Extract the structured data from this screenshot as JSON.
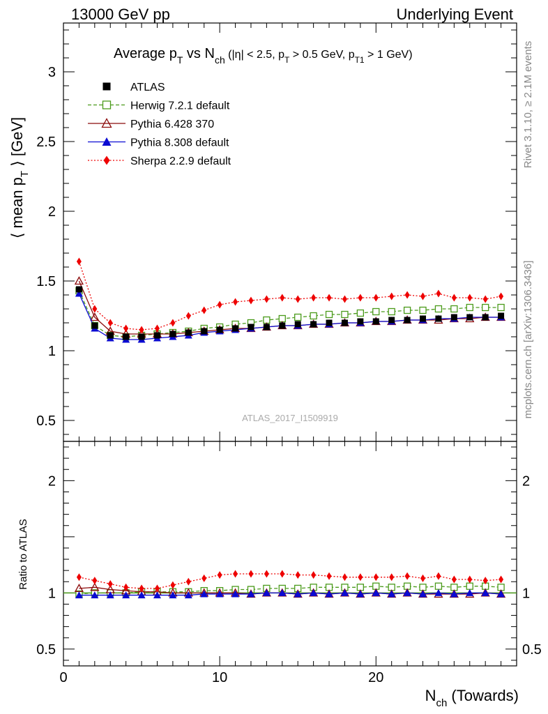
{
  "header": {
    "left": "13000 GeV pp",
    "right": "Underlying Event"
  },
  "side": {
    "rivet": "Rivet 3.1.10, ≥ 2.1M events",
    "mcplots": "mcplots.cern.ch [arXiv:1306.3436]"
  },
  "chart_data": {
    "type": "line",
    "title": {
      "main": "Average p",
      "main_sub": "T",
      "mid": " vs N",
      "mid_sub": "ch",
      "cut1": " (|η| < 2.5, p",
      "cut1_sub": "T",
      "cut2": " > 0.5 GeV, p",
      "cut2_sub": "T1",
      "cut3": " > 1 GeV)"
    },
    "ylabel": {
      "pre": "⟨ mean p",
      "sub": "T",
      "post": " ⟩ [GeV]"
    },
    "xlabel": {
      "pre": "N",
      "sub": "ch",
      "post": " (Towards)"
    },
    "ratio_ylabel": "Ratio to ATLAS",
    "watermark": "ATLAS_2017_I1509919",
    "xlim": [
      0,
      29
    ],
    "ylim": [
      0.35,
      3.35
    ],
    "ratio_ylim": [
      0.35,
      2.35
    ],
    "x_ticks": [
      0,
      10,
      20
    ],
    "y_ticks": [
      0.5,
      1,
      1.5,
      2,
      2.5,
      3
    ],
    "y_tick_labels": [
      "0.5",
      "1",
      "1.5",
      "2",
      "2.5",
      "3"
    ],
    "ratio_ticks": [
      0.5,
      1,
      2
    ],
    "ratio_tick_labels": [
      "0.5",
      "1",
      "2"
    ],
    "x": [
      1,
      2,
      3,
      4,
      5,
      6,
      7,
      8,
      9,
      10,
      11,
      12,
      13,
      14,
      15,
      16,
      17,
      18,
      19,
      20,
      21,
      22,
      23,
      24,
      25,
      26,
      27,
      28
    ],
    "series": [
      {
        "name": "ATLAS",
        "color": "#000000",
        "marker": "square-filled",
        "line": "none",
        "values": [
          1.44,
          1.18,
          1.11,
          1.1,
          1.1,
          1.11,
          1.12,
          1.13,
          1.14,
          1.15,
          1.16,
          1.17,
          1.17,
          1.18,
          1.19,
          1.19,
          1.2,
          1.2,
          1.21,
          1.21,
          1.22,
          1.22,
          1.23,
          1.23,
          1.24,
          1.24,
          1.24,
          1.25
        ],
        "ratio": [
          1,
          1,
          1,
          1,
          1,
          1,
          1,
          1,
          1,
          1,
          1,
          1,
          1,
          1,
          1,
          1,
          1,
          1,
          1,
          1,
          1,
          1,
          1,
          1,
          1,
          1,
          1,
          1
        ]
      },
      {
        "name": "Herwig 7.2.1 default",
        "color": "#4a9a1a",
        "marker": "square-open",
        "line": "dashed",
        "values": [
          1.43,
          1.18,
          1.11,
          1.1,
          1.11,
          1.12,
          1.13,
          1.14,
          1.16,
          1.17,
          1.19,
          1.2,
          1.22,
          1.23,
          1.24,
          1.25,
          1.26,
          1.26,
          1.27,
          1.28,
          1.28,
          1.29,
          1.29,
          1.3,
          1.3,
          1.31,
          1.31,
          1.31
        ],
        "ratio": [
          0.99,
          1.0,
          1.0,
          1.0,
          1.01,
          1.01,
          1.01,
          1.01,
          1.02,
          1.02,
          1.03,
          1.03,
          1.04,
          1.04,
          1.04,
          1.05,
          1.05,
          1.05,
          1.05,
          1.06,
          1.05,
          1.06,
          1.05,
          1.06,
          1.05,
          1.06,
          1.06,
          1.05
        ]
      },
      {
        "name": "Pythia 6.428 370",
        "color": "#8b0a0a",
        "marker": "triangle-open",
        "line": "solid",
        "values": [
          1.5,
          1.24,
          1.14,
          1.12,
          1.12,
          1.12,
          1.12,
          1.13,
          1.14,
          1.15,
          1.16,
          1.16,
          1.17,
          1.18,
          1.18,
          1.19,
          1.19,
          1.2,
          1.2,
          1.21,
          1.21,
          1.22,
          1.22,
          1.22,
          1.23,
          1.23,
          1.24,
          1.24
        ],
        "ratio": [
          1.04,
          1.05,
          1.03,
          1.02,
          1.01,
          1.01,
          1.0,
          1.0,
          1.0,
          1.0,
          1.0,
          0.99,
          1.0,
          1.0,
          0.99,
          1.0,
          0.99,
          1.0,
          0.99,
          1.0,
          0.99,
          1.0,
          0.99,
          0.99,
          0.99,
          0.99,
          1.0,
          0.99
        ]
      },
      {
        "name": "Pythia 8.308 default",
        "color": "#0a0ad2",
        "marker": "triangle-filled",
        "line": "solid",
        "values": [
          1.41,
          1.16,
          1.09,
          1.08,
          1.08,
          1.09,
          1.1,
          1.11,
          1.13,
          1.14,
          1.15,
          1.16,
          1.17,
          1.18,
          1.18,
          1.19,
          1.19,
          1.2,
          1.2,
          1.21,
          1.21,
          1.22,
          1.22,
          1.23,
          1.23,
          1.24,
          1.24,
          1.24
        ],
        "ratio": [
          0.98,
          0.98,
          0.98,
          0.98,
          0.98,
          0.98,
          0.98,
          0.98,
          0.99,
          0.99,
          0.99,
          0.99,
          1.0,
          1.0,
          0.99,
          1.0,
          0.99,
          1.0,
          0.99,
          1.0,
          0.99,
          1.0,
          0.99,
          1.0,
          0.99,
          1.0,
          1.0,
          0.99
        ]
      },
      {
        "name": "Sherpa 2.2.9 default",
        "color": "#ee0000",
        "marker": "diamond-filled",
        "line": "dotted",
        "values": [
          1.64,
          1.3,
          1.2,
          1.16,
          1.15,
          1.16,
          1.2,
          1.25,
          1.29,
          1.33,
          1.35,
          1.36,
          1.37,
          1.38,
          1.37,
          1.38,
          1.38,
          1.37,
          1.38,
          1.38,
          1.39,
          1.4,
          1.39,
          1.41,
          1.38,
          1.38,
          1.37,
          1.39
        ],
        "ratio": [
          1.14,
          1.11,
          1.08,
          1.05,
          1.04,
          1.04,
          1.07,
          1.1,
          1.13,
          1.16,
          1.17,
          1.17,
          1.17,
          1.17,
          1.16,
          1.16,
          1.15,
          1.14,
          1.14,
          1.14,
          1.14,
          1.15,
          1.13,
          1.15,
          1.12,
          1.12,
          1.11,
          1.12
        ]
      }
    ]
  }
}
